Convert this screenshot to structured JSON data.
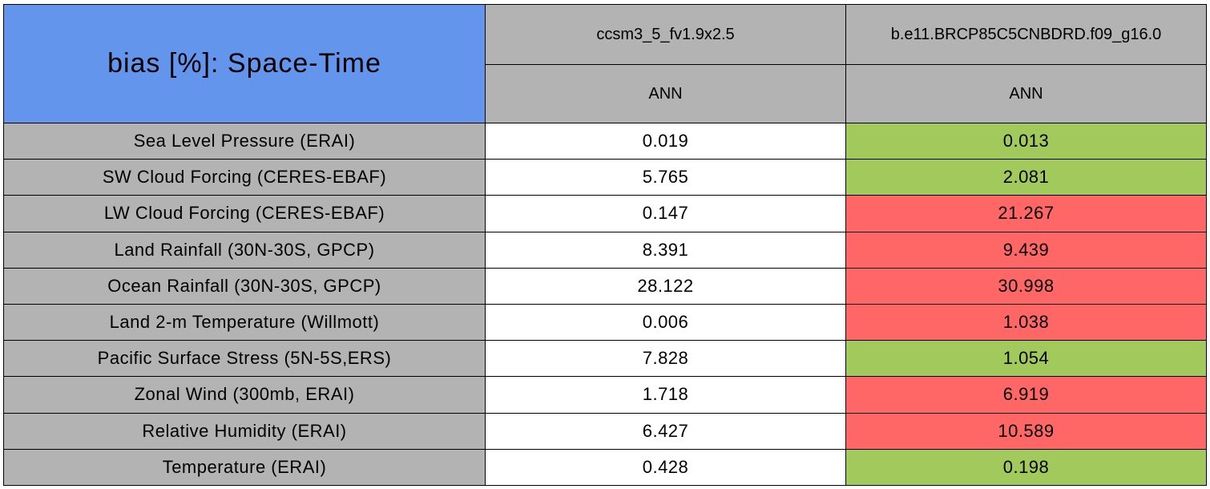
{
  "table": {
    "title": "bias [%]: Space-Time",
    "title_color": "#6495ed",
    "header_color": "#b3b3b3",
    "label_color": "#b3b3b3",
    "columns": [
      {
        "name": "ccsm3_5_fv1.9x2.5",
        "season": "ANN"
      },
      {
        "name": "b.e11.BRCP85C5CNBDRD.f09_g16.0",
        "season": "ANN"
      }
    ],
    "rows": [
      {
        "label": "Sea Level Pressure (ERAI)",
        "cells": [
          {
            "text": "0.019",
            "color": "#ffffff"
          },
          {
            "text": "0.013",
            "color": "#a2c95b"
          }
        ]
      },
      {
        "label": "SW Cloud Forcing (CERES-EBAF)",
        "cells": [
          {
            "text": "5.765",
            "color": "#ffffff"
          },
          {
            "text": "2.081",
            "color": "#a2c95b"
          }
        ]
      },
      {
        "label": "LW Cloud Forcing (CERES-EBAF)",
        "cells": [
          {
            "text": "0.147",
            "color": "#ffffff"
          },
          {
            "text": "21.267",
            "color": "#ff6666"
          }
        ]
      },
      {
        "label": "Land Rainfall (30N-30S, GPCP)",
        "cells": [
          {
            "text": "8.391",
            "color": "#ffffff"
          },
          {
            "text": "9.439",
            "color": "#ff6666"
          }
        ]
      },
      {
        "label": "Ocean Rainfall (30N-30S, GPCP)",
        "cells": [
          {
            "text": "28.122",
            "color": "#ffffff"
          },
          {
            "text": "30.998",
            "color": "#ff6666"
          }
        ]
      },
      {
        "label": "Land 2-m Temperature (Willmott)",
        "cells": [
          {
            "text": "0.006",
            "color": "#ffffff"
          },
          {
            "text": "1.038",
            "color": "#ff6666"
          }
        ]
      },
      {
        "label": "Pacific Surface Stress (5N-5S,ERS)",
        "cells": [
          {
            "text": "7.828",
            "color": "#ffffff"
          },
          {
            "text": "1.054",
            "color": "#a2c95b"
          }
        ]
      },
      {
        "label": "Zonal Wind (300mb, ERAI)",
        "cells": [
          {
            "text": "1.718",
            "color": "#ffffff"
          },
          {
            "text": "6.919",
            "color": "#ff6666"
          }
        ]
      },
      {
        "label": "Relative Humidity (ERAI)",
        "cells": [
          {
            "text": "6.427",
            "color": "#ffffff"
          },
          {
            "text": "10.589",
            "color": "#ff6666"
          }
        ]
      },
      {
        "label": "Temperature (ERAI)",
        "cells": [
          {
            "text": "0.428",
            "color": "#ffffff"
          },
          {
            "text": "0.198",
            "color": "#a2c95b"
          }
        ]
      }
    ]
  }
}
